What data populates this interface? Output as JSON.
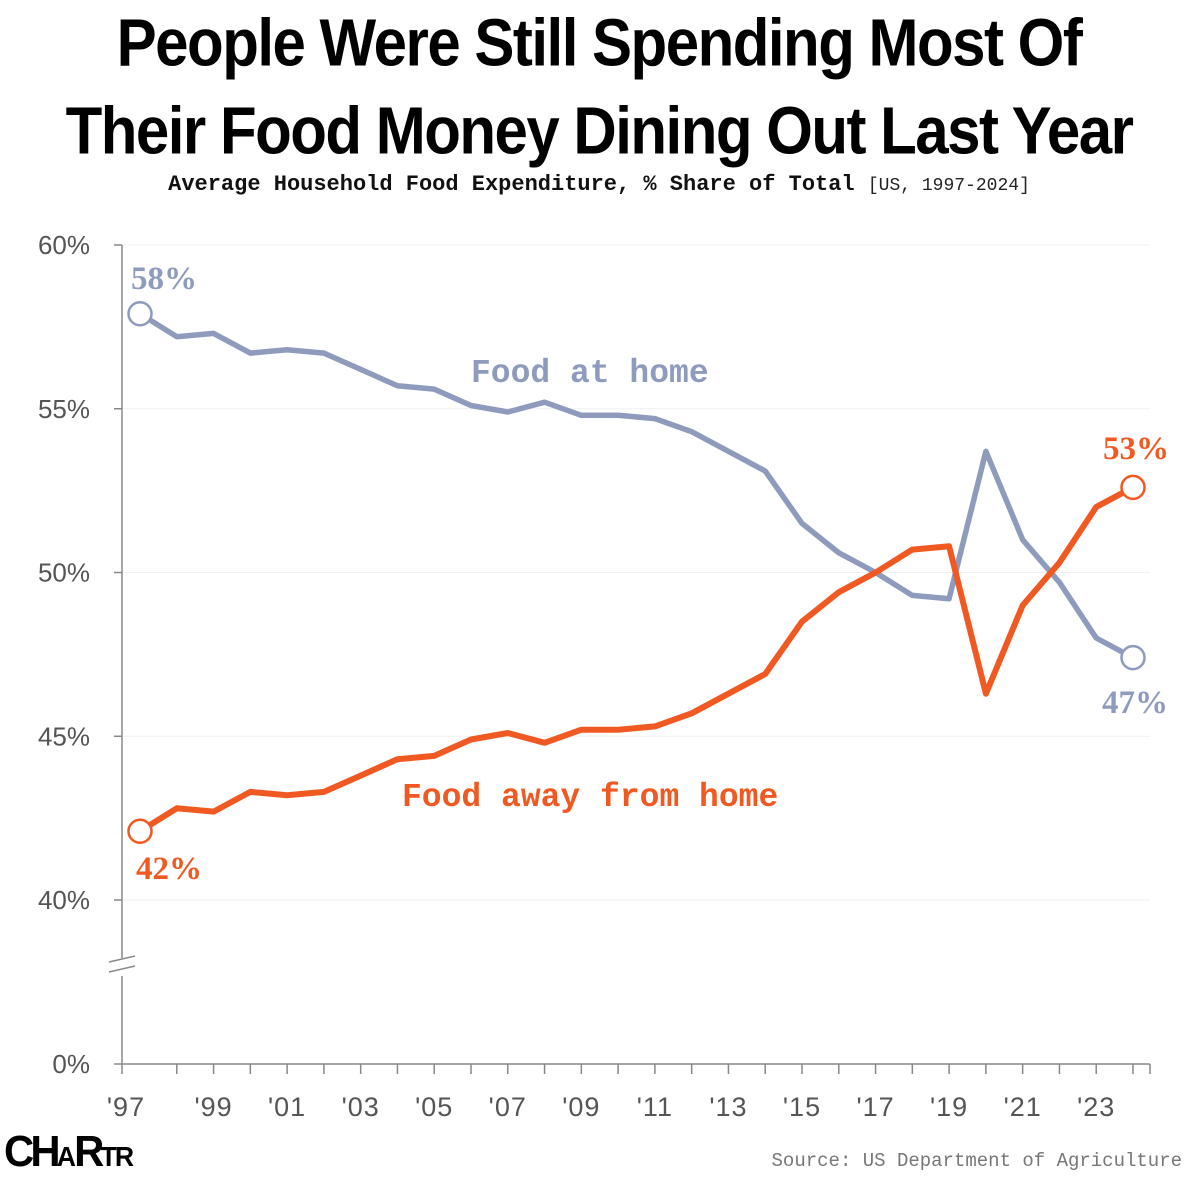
{
  "title": {
    "line1": "People Were Still Spending Most Of",
    "line2": "Their Food Money Dining Out Last Year"
  },
  "subtitle": {
    "main": "Average Household Food Expenditure, % Share of Total",
    "range": "[US, 1997-2024]"
  },
  "chart_data": {
    "type": "line",
    "x": [
      1997,
      1998,
      1999,
      2000,
      2001,
      2002,
      2003,
      2004,
      2005,
      2006,
      2007,
      2008,
      2009,
      2010,
      2011,
      2012,
      2013,
      2014,
      2015,
      2016,
      2017,
      2018,
      2019,
      2020,
      2021,
      2022,
      2023,
      2024
    ],
    "x_tick_labels": [
      "'97",
      "'99",
      "'01",
      "'03",
      "'05",
      "'07",
      "'09",
      "'11",
      "'13",
      "'15",
      "'17",
      "'19",
      "'21",
      "'23"
    ],
    "y_tick_labels": [
      "60%",
      "55%",
      "50%",
      "45%",
      "40%",
      "0%"
    ],
    "y_ticks": [
      60,
      55,
      50,
      45,
      40,
      0
    ],
    "ylim": [
      0,
      60
    ],
    "y_axis_break": [
      30,
      40
    ],
    "series": [
      {
        "name": "Food at home",
        "color": "#8f9bbd",
        "values": [
          57.9,
          57.2,
          57.3,
          56.7,
          56.8,
          56.7,
          56.2,
          55.7,
          55.6,
          55.1,
          54.9,
          55.2,
          54.8,
          54.8,
          54.7,
          54.3,
          53.7,
          53.1,
          51.5,
          50.6,
          50.0,
          49.3,
          49.2,
          53.7,
          51.0,
          49.7,
          48.0,
          47.4
        ],
        "start_label": "58%",
        "end_label": "47%"
      },
      {
        "name": "Food away from home",
        "color": "#f05a22",
        "values": [
          42.1,
          42.8,
          42.7,
          43.3,
          43.2,
          43.3,
          43.8,
          44.3,
          44.4,
          44.9,
          45.1,
          44.8,
          45.2,
          45.2,
          45.3,
          45.7,
          46.3,
          46.9,
          48.5,
          49.4,
          50.0,
          50.7,
          50.8,
          46.3,
          49.0,
          50.3,
          52.0,
          52.6
        ],
        "start_label": "42%",
        "end_label": "53%"
      }
    ],
    "grid": true,
    "legend": "inline labels"
  },
  "branding": {
    "logo": "CHARTR"
  },
  "source": "Source: US Department of Agriculture"
}
